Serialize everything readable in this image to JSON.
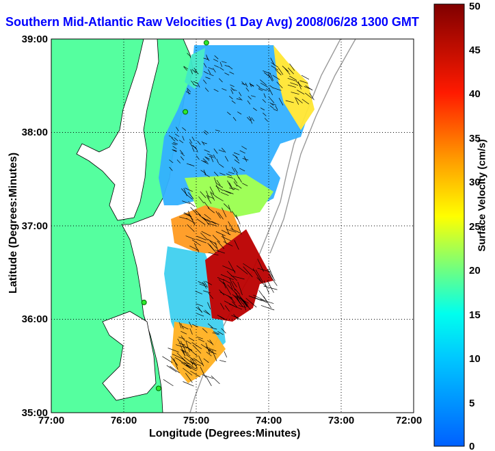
{
  "title": "Southern Mid-Atlantic Raw Velocities (1 Day Avg) 2008/06/28 1300 GMT",
  "xlabel": "Longitude (Degrees:Minutes)",
  "ylabel": "Latitude (Degrees:Minutes)",
  "colorbar": {
    "label": "Surface Velocity (cm/s)",
    "min": 0,
    "max": 50,
    "ticks": [
      "0",
      "5",
      "10",
      "15",
      "20",
      "25",
      "30",
      "35",
      "40",
      "45",
      "50"
    ]
  },
  "x_ticks": [
    "77:00",
    "76:00",
    "75:00",
    "74:00",
    "73:00",
    "72:00"
  ],
  "y_ticks": [
    "39:00",
    "38:00",
    "37:00",
    "36:00",
    "35:00"
  ],
  "colors": {
    "land": "#55ff9f",
    "water": "#ffffff",
    "title": "#0000ff",
    "station": "#2ee82e"
  },
  "chart_data": {
    "type": "heatmap",
    "title": "Southern Mid-Atlantic Raw Velocities (1 Day Avg) 2008/06/28 1300 GMT",
    "xlabel": "Longitude (Degrees:Minutes)",
    "ylabel": "Latitude (Degrees:Minutes)",
    "xlim": [
      -77,
      -72
    ],
    "ylim": [
      35,
      39
    ],
    "value_label": "Surface Velocity (cm/s)",
    "value_range": [
      0,
      50
    ],
    "grid": true,
    "regions": [
      {
        "lon": -74.8,
        "lat": 38.6,
        "speed": 10
      },
      {
        "lon": -74.2,
        "lat": 38.3,
        "speed": 8
      },
      {
        "lon": -73.7,
        "lat": 38.5,
        "speed": 24
      },
      {
        "lon": -75.0,
        "lat": 37.8,
        "speed": 9
      },
      {
        "lon": -74.6,
        "lat": 37.6,
        "speed": 14
      },
      {
        "lon": -74.8,
        "lat": 37.2,
        "speed": 24
      },
      {
        "lon": -74.7,
        "lat": 36.9,
        "speed": 32
      },
      {
        "lon": -74.2,
        "lat": 36.3,
        "speed": 47
      },
      {
        "lon": -74.6,
        "lat": 36.2,
        "speed": 20
      },
      {
        "lon": -74.9,
        "lat": 35.7,
        "speed": 16
      },
      {
        "lon": -75.0,
        "lat": 35.5,
        "speed": 38
      }
    ],
    "stations": [
      {
        "lon": -74.86,
        "lat": 38.96
      },
      {
        "lon": -75.15,
        "lat": 38.22
      },
      {
        "lon": -75.72,
        "lat": 36.18
      },
      {
        "lon": -75.52,
        "lat": 35.26
      }
    ]
  }
}
